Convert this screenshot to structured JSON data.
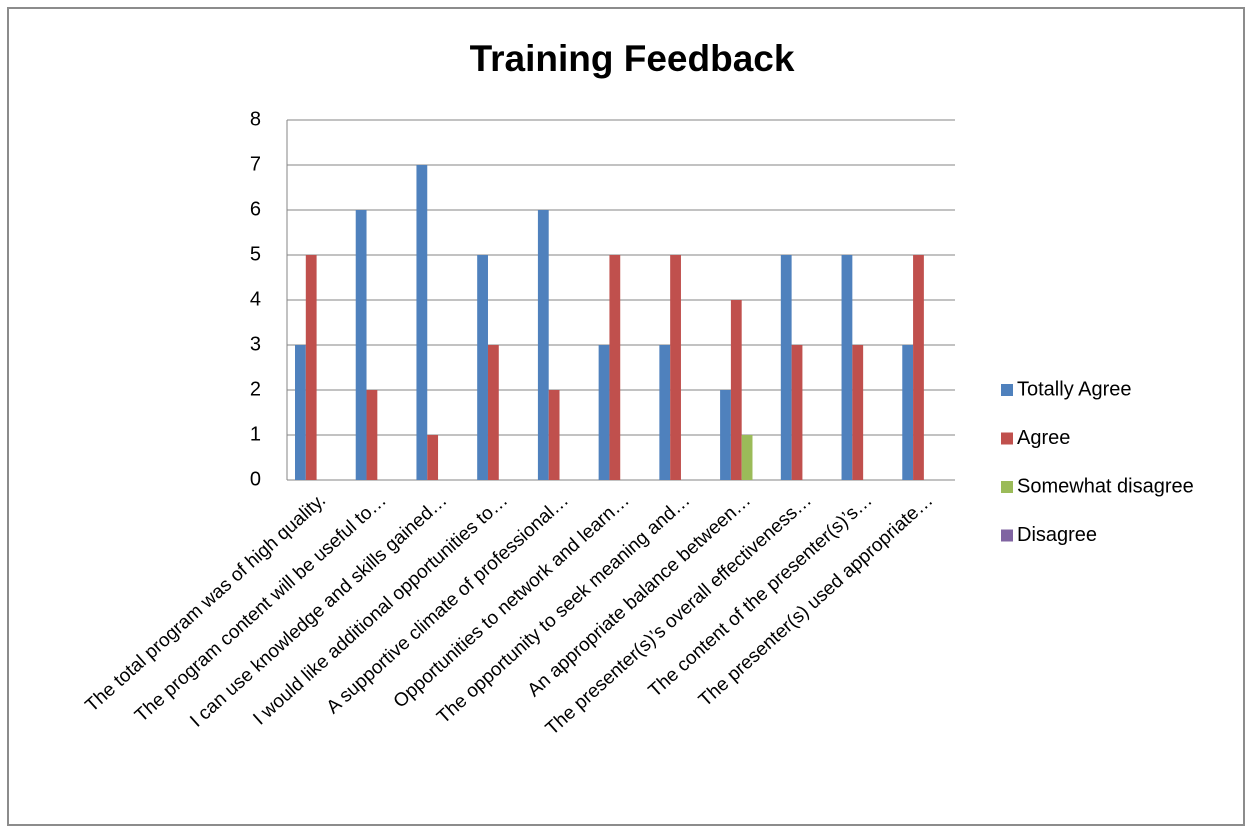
{
  "chart_data": {
    "type": "bar",
    "title": "Training Feedback",
    "categories": [
      "The total program was of high quality.",
      "The program content will be useful to…",
      "I can use knowledge and skills gained…",
      "I would like additional opportunities to…",
      "A supportive climate of professional…",
      "Opportunities to network and learn…",
      "The opportunity to seek meaning and…",
      "An appropriate balance between…",
      "The presenter(s)’s  overall effectiveness…",
      "The content of the presenter(s)’s…",
      "The presenter(s) used appropriate…"
    ],
    "series": [
      {
        "name": "Totally Agree",
        "color": "#4f81bd",
        "values": [
          3,
          6,
          7,
          5,
          6,
          3,
          3,
          2,
          5,
          5,
          3
        ]
      },
      {
        "name": "Agree",
        "color": "#c0504d",
        "values": [
          5,
          2,
          1,
          3,
          2,
          5,
          5,
          4,
          3,
          3,
          5
        ]
      },
      {
        "name": "Somewhat disagree",
        "color": "#9bbb59",
        "values": [
          0,
          0,
          0,
          0,
          0,
          0,
          0,
          1,
          0,
          0,
          0
        ]
      },
      {
        "name": "Disagree",
        "color": "#8064a2",
        "values": [
          0,
          0,
          0,
          0,
          0,
          0,
          0,
          0,
          0,
          0,
          0
        ]
      }
    ],
    "ylim": [
      0,
      8
    ],
    "yticks": [
      0,
      1,
      2,
      3,
      4,
      5,
      6,
      7,
      8
    ],
    "grid": true,
    "legend": "right"
  }
}
